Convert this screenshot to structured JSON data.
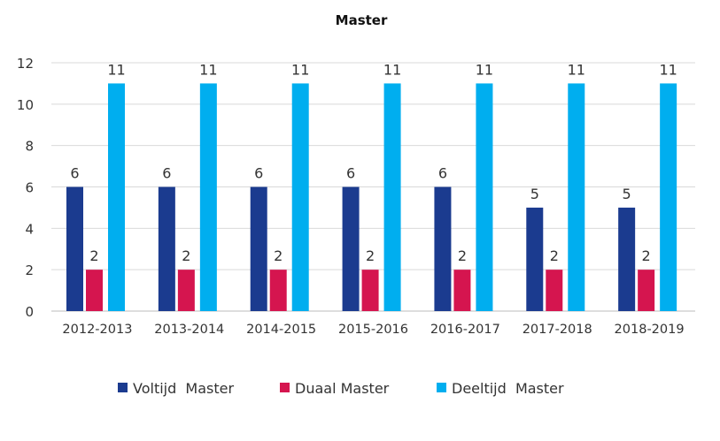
{
  "chart_data": {
    "type": "bar",
    "title": "Master",
    "xlabel": "",
    "ylabel": "",
    "ylim": [
      0,
      12
    ],
    "yticks": [
      0,
      2,
      4,
      6,
      8,
      10,
      12
    ],
    "grid": true,
    "legend_position": "bottom",
    "categories": [
      "2012-2013",
      "2013-2014",
      "2014-2015",
      "2015-2016",
      "2016-2017",
      "2017-2018",
      "2018-2019"
    ],
    "series": [
      {
        "name": "Voltijd  Master",
        "color": "#1b3b8f",
        "values": [
          6,
          6,
          6,
          6,
          6,
          5,
          5
        ]
      },
      {
        "name": "Duaal Master",
        "color": "#d5154f",
        "values": [
          2,
          2,
          2,
          2,
          2,
          2,
          2
        ]
      },
      {
        "name": "Deeltijd  Master",
        "color": "#00aeef",
        "values": [
          11,
          11,
          11,
          11,
          11,
          11,
          11
        ]
      }
    ]
  }
}
